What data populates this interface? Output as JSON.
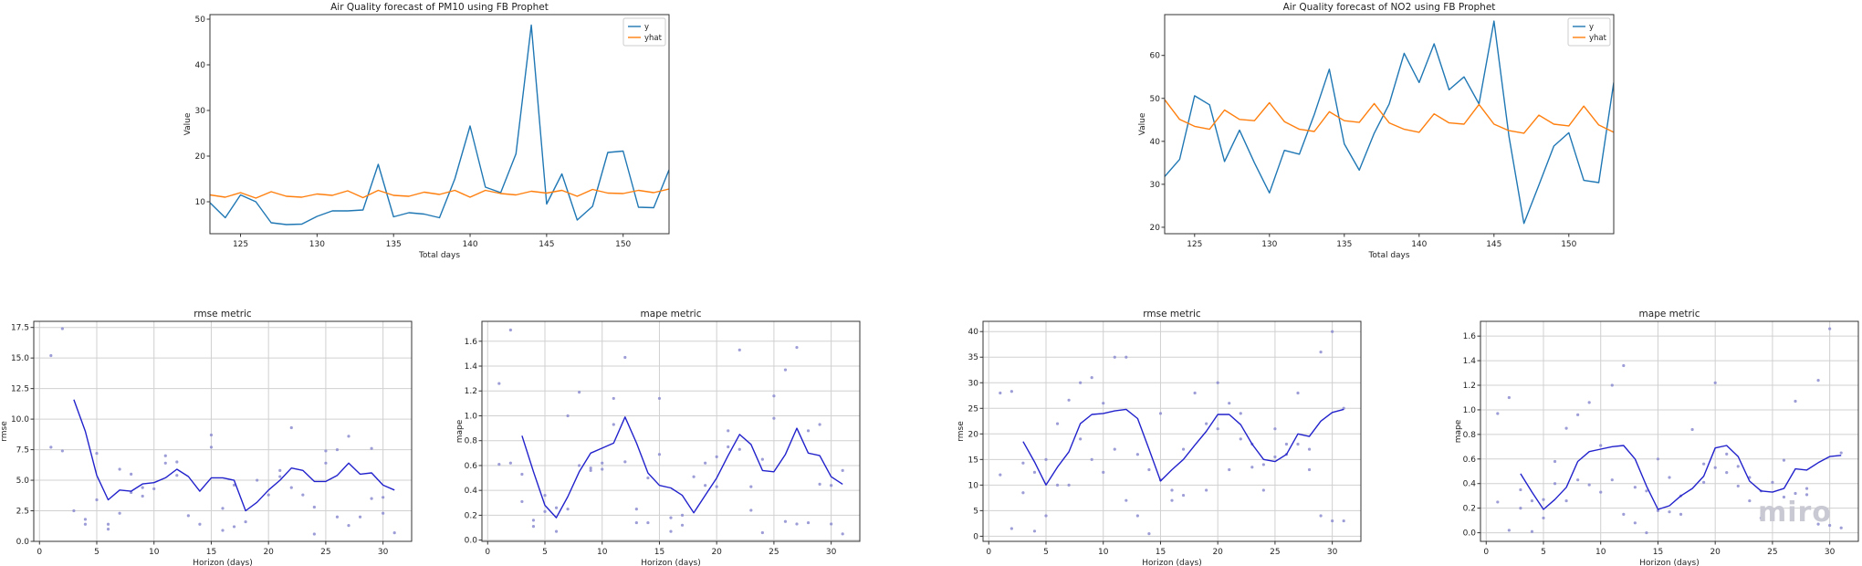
{
  "watermark": "miro",
  "chart_data": [
    {
      "type": "line",
      "title": "Air Quality forecast of PM10 using FB Prophet",
      "xlabel": "Total days",
      "ylabel": "Value",
      "xlim": [
        123,
        153
      ],
      "ylim": [
        3,
        51
      ],
      "xticks": [
        125,
        130,
        135,
        140,
        145,
        150
      ],
      "yticks": [
        10,
        20,
        30,
        40,
        50
      ],
      "grid": false,
      "legend": "top-right",
      "x": [
        123,
        124,
        125,
        126,
        127,
        128,
        129,
        130,
        131,
        132,
        133,
        134,
        135,
        136,
        137,
        138,
        139,
        140,
        141,
        142,
        143,
        144,
        145,
        146,
        147,
        148,
        149,
        150,
        151,
        152,
        153
      ],
      "series": [
        {
          "name": "y",
          "color": "#1f77b4",
          "values": [
            9.8,
            6.5,
            11.5,
            10.0,
            5.4,
            5.0,
            5.1,
            6.8,
            8.0,
            8.0,
            8.2,
            18.2,
            6.7,
            7.6,
            7.3,
            6.5,
            15.0,
            26.6,
            13.2,
            12.0,
            20.5,
            48.7,
            9.5,
            16.1,
            6.0,
            9.0,
            20.8,
            21.1,
            8.8,
            8.7,
            17.0
          ]
        },
        {
          "name": "yhat",
          "color": "#ff7f0e",
          "values": [
            11.5,
            11.0,
            12.0,
            10.8,
            12.2,
            11.2,
            11.0,
            11.7,
            11.4,
            12.4,
            10.9,
            12.5,
            11.4,
            11.2,
            12.1,
            11.6,
            12.5,
            11.0,
            12.5,
            11.8,
            11.5,
            12.3,
            11.9,
            12.5,
            11.2,
            12.7,
            11.9,
            11.8,
            12.5,
            12.0,
            12.8
          ]
        }
      ]
    },
    {
      "type": "line",
      "title": "Air Quality forecast of NO2 using FB Prophet",
      "xlabel": "Total days",
      "ylabel": "Value",
      "xlim": [
        123,
        153
      ],
      "ylim": [
        18.5,
        69.5
      ],
      "xticks": [
        125,
        130,
        135,
        140,
        145,
        150
      ],
      "yticks": [
        20,
        30,
        40,
        50,
        60
      ],
      "grid": false,
      "legend": "top-right",
      "x": [
        123,
        124,
        125,
        126,
        127,
        128,
        129,
        130,
        131,
        132,
        133,
        134,
        135,
        136,
        137,
        138,
        139,
        140,
        141,
        142,
        143,
        144,
        145,
        146,
        147,
        148,
        149,
        150,
        151,
        152,
        153
      ],
      "series": [
        {
          "name": "y",
          "color": "#1f77b4",
          "values": [
            31.8,
            35.8,
            50.6,
            48.5,
            35.3,
            42.6,
            35.0,
            28.0,
            37.9,
            37.0,
            46.3,
            56.8,
            39.4,
            33.3,
            41.9,
            48.7,
            60.5,
            53.7,
            62.7,
            52.0,
            55.0,
            48.7,
            68.0,
            41.2,
            20.9,
            29.8,
            38.9,
            42.0,
            30.9,
            30.4,
            53.7
          ]
        },
        {
          "name": "yhat",
          "color": "#ff7f0e",
          "values": [
            49.7,
            45.1,
            43.5,
            42.8,
            47.3,
            45.1,
            44.8,
            49.0,
            44.6,
            42.8,
            42.3,
            46.9,
            44.8,
            44.4,
            48.8,
            44.3,
            42.8,
            42.1,
            46.4,
            44.3,
            44.0,
            48.6,
            44.0,
            42.5,
            41.9,
            46.1,
            44.0,
            43.6,
            48.2,
            43.8,
            42.1
          ]
        }
      ]
    },
    {
      "type": "line",
      "title": "rmse metric",
      "xlabel": "Horizon (days)",
      "ylabel": "rmse",
      "xlim": [
        -0.5,
        32.5
      ],
      "ylim": [
        0,
        18
      ],
      "xticks": [
        0,
        5,
        10,
        15,
        20,
        25,
        30
      ],
      "yticks": [
        "0.0",
        "2.5",
        "5.0",
        "7.5",
        "10.0",
        "12.5",
        "15.0",
        "17.5"
      ],
      "grid": true,
      "series": [
        {
          "name": "",
          "color": "#2222cc",
          "x": [
            3,
            4,
            5,
            6,
            7,
            8,
            9,
            10,
            11,
            12,
            13,
            14,
            15,
            16,
            17,
            18,
            19,
            20,
            21,
            22,
            23,
            24,
            25,
            26,
            27,
            28,
            29,
            30,
            31
          ],
          "values": [
            11.6,
            9.0,
            5.4,
            3.4,
            4.2,
            4.1,
            4.7,
            4.8,
            5.2,
            5.9,
            5.3,
            4.1,
            5.2,
            5.2,
            5.0,
            2.5,
            3.2,
            4.2,
            5.0,
            6.0,
            5.8,
            4.9,
            4.9,
            5.4,
            6.4,
            5.5,
            5.6,
            4.6,
            4.2
          ]
        }
      ],
      "points": {
        "color": "#8c8cd0",
        "x": [
          1,
          1,
          2,
          2,
          3,
          4,
          4,
          5,
          5,
          6,
          6,
          7,
          7,
          8,
          8,
          9,
          9,
          10,
          11,
          11,
          12,
          12,
          13,
          14,
          15,
          15,
          16,
          16,
          17,
          17,
          18,
          19,
          20,
          21,
          21,
          22,
          22,
          23,
          24,
          24,
          25,
          25,
          26,
          26,
          27,
          27,
          28,
          29,
          29,
          30,
          30,
          31
        ],
        "y": [
          15.2,
          7.7,
          17.4,
          7.4,
          2.5,
          1.8,
          1.4,
          3.4,
          7.2,
          1.4,
          1.0,
          5.9,
          2.3,
          5.5,
          4.0,
          3.7,
          4.4,
          4.3,
          7.0,
          6.4,
          6.5,
          5.4,
          2.1,
          1.4,
          8.7,
          7.7,
          2.7,
          0.9,
          4.6,
          1.2,
          1.6,
          5.0,
          3.8,
          5.3,
          5.8,
          9.3,
          4.4,
          3.8,
          2.8,
          0.6,
          6.4,
          7.4,
          2.0,
          7.5,
          8.6,
          1.3,
          2.0,
          3.5,
          7.6,
          2.3,
          3.6,
          0.7
        ]
      }
    },
    {
      "type": "line",
      "title": "mape metric",
      "xlabel": "Horizon (days)",
      "ylabel": "mape",
      "xlim": [
        -0.5,
        32.5
      ],
      "ylim": [
        -0.01,
        1.76
      ],
      "xticks": [
        0,
        5,
        10,
        15,
        20,
        25,
        30
      ],
      "yticks": [
        "0.0",
        "0.2",
        "0.4",
        "0.6",
        "0.8",
        "1.0",
        "1.2",
        "1.4",
        "1.6"
      ],
      "grid": true,
      "series": [
        {
          "name": "",
          "color": "#2222cc",
          "x": [
            3,
            4,
            5,
            6,
            7,
            8,
            9,
            10,
            11,
            12,
            13,
            14,
            15,
            16,
            17,
            18,
            19,
            20,
            21,
            22,
            23,
            24,
            25,
            26,
            27,
            28,
            29,
            30,
            31
          ],
          "values": [
            0.84,
            0.55,
            0.28,
            0.18,
            0.35,
            0.55,
            0.7,
            0.74,
            0.78,
            0.99,
            0.78,
            0.54,
            0.44,
            0.42,
            0.36,
            0.22,
            0.36,
            0.5,
            0.68,
            0.85,
            0.77,
            0.56,
            0.55,
            0.69,
            0.9,
            0.7,
            0.68,
            0.51,
            0.45
          ]
        }
      ],
      "points": {
        "color": "#8c8cd0",
        "x": [
          1,
          1,
          2,
          2,
          3,
          3,
          4,
          4,
          5,
          5,
          6,
          6,
          7,
          7,
          8,
          8,
          9,
          9,
          10,
          10,
          11,
          11,
          12,
          12,
          13,
          13,
          14,
          14,
          15,
          15,
          16,
          16,
          17,
          17,
          18,
          19,
          19,
          20,
          20,
          21,
          21,
          22,
          22,
          23,
          23,
          24,
          24,
          25,
          25,
          26,
          26,
          27,
          27,
          28,
          28,
          29,
          29,
          30,
          30,
          31,
          31
        ],
        "y": [
          1.26,
          0.61,
          1.69,
          0.62,
          0.31,
          0.53,
          0.16,
          0.11,
          0.36,
          0.23,
          0.07,
          0.26,
          1.0,
          0.25,
          1.19,
          0.6,
          0.56,
          0.58,
          0.62,
          0.57,
          1.14,
          0.93,
          1.47,
          0.63,
          0.25,
          0.14,
          0.14,
          0.5,
          1.14,
          0.69,
          0.18,
          0.07,
          0.2,
          0.12,
          0.51,
          0.44,
          0.62,
          0.67,
          0.43,
          0.88,
          0.75,
          1.53,
          0.73,
          0.43,
          0.24,
          0.65,
          0.06,
          1.16,
          0.98,
          0.15,
          1.37,
          1.55,
          0.13,
          0.14,
          0.88,
          0.93,
          0.45,
          0.13,
          0.44,
          0.56,
          0.05
        ]
      }
    },
    {
      "type": "line",
      "title": "rmse metric",
      "xlabel": "Horizon (days)",
      "ylabel": "rmse",
      "xlim": [
        -0.5,
        32.5
      ],
      "ylim": [
        -1,
        42
      ],
      "xticks": [
        0,
        5,
        10,
        15,
        20,
        25,
        30
      ],
      "yticks": [
        0,
        5,
        10,
        15,
        20,
        25,
        30,
        35,
        40
      ],
      "grid": true,
      "series": [
        {
          "name": "",
          "color": "#2222cc",
          "x": [
            3,
            4,
            5,
            6,
            7,
            8,
            9,
            10,
            11,
            12,
            13,
            14,
            15,
            16,
            17,
            18,
            19,
            20,
            21,
            22,
            23,
            24,
            25,
            26,
            27,
            28,
            29,
            30,
            31
          ],
          "values": [
            18.5,
            14.5,
            10.0,
            13.5,
            16.5,
            22.0,
            23.8,
            24.0,
            24.5,
            24.8,
            23.0,
            17.0,
            10.8,
            13.0,
            15.0,
            17.8,
            20.5,
            23.8,
            23.8,
            21.8,
            18.0,
            15.0,
            14.6,
            16.0,
            20.0,
            19.5,
            22.5,
            24.2,
            24.8
          ]
        }
      ],
      "points": {
        "color": "#8c8cd0",
        "x": [
          1,
          1,
          2,
          2,
          3,
          3,
          4,
          4,
          5,
          5,
          6,
          6,
          7,
          7,
          8,
          8,
          9,
          9,
          10,
          10,
          11,
          11,
          12,
          12,
          13,
          13,
          14,
          14,
          15,
          15,
          16,
          16,
          17,
          17,
          18,
          19,
          19,
          20,
          20,
          21,
          21,
          22,
          22,
          23,
          23,
          24,
          24,
          25,
          25,
          26,
          26,
          27,
          27,
          28,
          28,
          29,
          29,
          30,
          30,
          31,
          31
        ],
        "y": [
          28.0,
          12.0,
          28.3,
          1.5,
          14.3,
          8.5,
          1.0,
          12.5,
          4.0,
          15.0,
          22.0,
          10.0,
          26.6,
          10.0,
          30.0,
          19.0,
          31.0,
          15.0,
          12.5,
          26.0,
          35.0,
          17.0,
          35.0,
          7.0,
          4.0,
          16.0,
          0.5,
          13.0,
          11.0,
          24.0,
          7.0,
          9.0,
          17.0,
          8.0,
          28.0,
          9.0,
          22.0,
          30.0,
          21.0,
          26.0,
          13.0,
          19.0,
          24.0,
          13.5,
          18.0,
          9.0,
          14.0,
          21.0,
          15.5,
          18.0,
          16.0,
          28.0,
          18.0,
          13.0,
          17.0,
          36.0,
          4.0,
          3.0,
          40.0,
          25.0,
          3.0
        ]
      }
    },
    {
      "type": "line",
      "title": "mape metric",
      "xlabel": "Horizon (days)",
      "ylabel": "mape",
      "xlim": [
        -0.5,
        32.5
      ],
      "ylim": [
        -0.07,
        1.72
      ],
      "xticks": [
        0,
        5,
        10,
        15,
        20,
        25,
        30
      ],
      "yticks": [
        "0.0",
        "0.2",
        "0.4",
        "0.6",
        "0.8",
        "1.0",
        "1.2",
        "1.4",
        "1.6"
      ],
      "grid": true,
      "series": [
        {
          "name": "",
          "color": "#2222cc",
          "x": [
            3,
            4,
            5,
            6,
            7,
            8,
            9,
            10,
            11,
            12,
            13,
            14,
            15,
            16,
            17,
            18,
            19,
            20,
            21,
            22,
            23,
            24,
            25,
            26,
            27,
            28,
            29,
            30,
            31
          ],
          "values": [
            0.48,
            0.33,
            0.19,
            0.27,
            0.37,
            0.58,
            0.66,
            0.68,
            0.7,
            0.71,
            0.6,
            0.38,
            0.19,
            0.22,
            0.3,
            0.36,
            0.46,
            0.69,
            0.71,
            0.62,
            0.42,
            0.34,
            0.33,
            0.36,
            0.52,
            0.51,
            0.57,
            0.62,
            0.63
          ]
        }
      ],
      "points": {
        "color": "#8c8cd0",
        "x": [
          1,
          1,
          2,
          2,
          3,
          3,
          4,
          4,
          5,
          5,
          6,
          6,
          7,
          7,
          8,
          8,
          9,
          9,
          10,
          10,
          11,
          11,
          12,
          12,
          13,
          13,
          14,
          14,
          15,
          15,
          16,
          16,
          17,
          17,
          18,
          19,
          19,
          20,
          20,
          21,
          21,
          22,
          22,
          23,
          23,
          24,
          24,
          25,
          25,
          26,
          26,
          27,
          27,
          28,
          28,
          29,
          29,
          30,
          30,
          31,
          31
        ],
        "y": [
          0.97,
          0.25,
          1.1,
          0.02,
          0.35,
          0.2,
          0.01,
          0.26,
          0.12,
          0.27,
          0.58,
          0.4,
          0.85,
          0.26,
          0.96,
          0.43,
          1.06,
          0.39,
          0.33,
          0.71,
          1.2,
          0.43,
          1.36,
          0.15,
          0.08,
          0.37,
          0.0,
          0.34,
          0.6,
          0.18,
          0.17,
          0.45,
          0.3,
          0.15,
          0.84,
          0.41,
          0.56,
          1.22,
          0.53,
          0.64,
          0.49,
          0.38,
          0.54,
          0.26,
          0.45,
          0.12,
          0.34,
          0.19,
          0.41,
          0.59,
          0.29,
          1.07,
          0.32,
          0.36,
          0.31,
          1.24,
          0.07,
          1.66,
          0.06,
          0.65,
          0.04
        ]
      }
    }
  ]
}
